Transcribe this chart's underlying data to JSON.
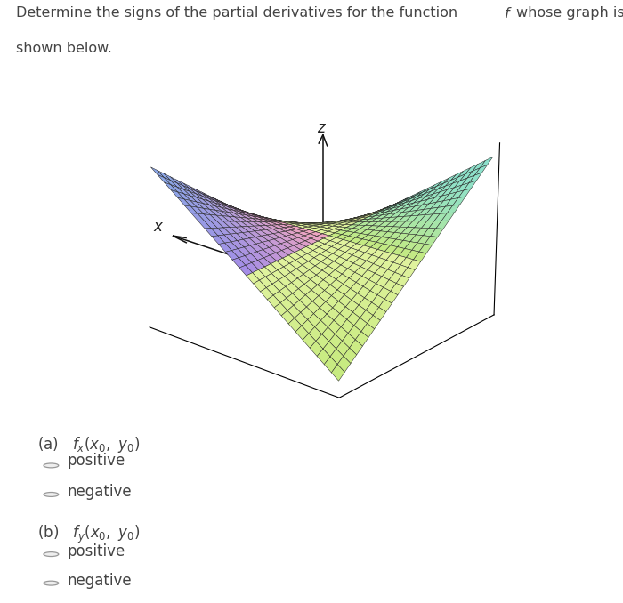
{
  "background_color": "#ffffff",
  "text_color": "#444444",
  "font_size_title": 11.5,
  "font_size_labels": 12,
  "font_size_axes": 11,
  "part_a_label": "(a)   $f_x(x_0,\\ y_0)$",
  "part_b_label": "(b)   $f_y(x_0,\\ y_0)$",
  "radio_option1": "positive",
  "radio_option2": "negative",
  "surface_alpha": 1.0,
  "grid_color": "#222222",
  "grid_linewidth": 0.35,
  "point_color": "#1199ff",
  "point_size": 30,
  "arrow_color": "#111111",
  "axis_label_color": "#222222",
  "color_pink": [
    0.95,
    0.65,
    0.75
  ],
  "color_purple": [
    0.65,
    0.55,
    0.9
  ],
  "color_blue": [
    0.55,
    0.65,
    0.9
  ],
  "color_cyan": [
    0.55,
    0.88,
    0.8
  ],
  "color_green": [
    0.65,
    0.9,
    0.65
  ],
  "color_yellow": [
    0.88,
    0.95,
    0.62
  ],
  "color_lime": [
    0.78,
    0.92,
    0.5
  ]
}
